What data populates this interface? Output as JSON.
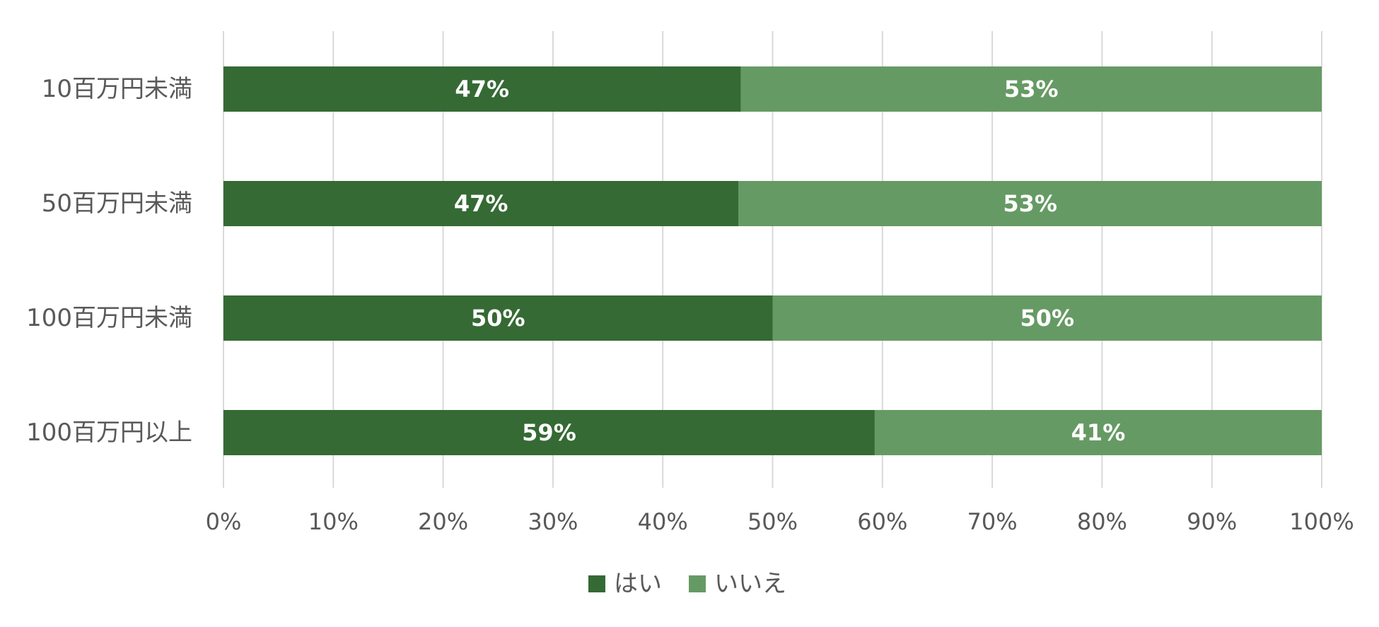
{
  "chart_data": {
    "type": "bar",
    "orientation": "horizontal",
    "stacked": true,
    "percent": true,
    "categories": [
      "10百万円未満",
      "50百万円未満",
      "100百万円未満",
      "100百万円以上"
    ],
    "series": [
      {
        "name": "はい",
        "color": "#356a34",
        "values": [
          47.1,
          46.9,
          50,
          59.3
        ],
        "labels": [
          "47%",
          "47%",
          "50%",
          "59%"
        ]
      },
      {
        "name": "いいえ",
        "color": "#669a64",
        "values": [
          52.9,
          53.1,
          50,
          40.7
        ],
        "labels": [
          "53%",
          "53%",
          "50%",
          "41%"
        ]
      }
    ],
    "xlim": [
      0,
      100
    ],
    "x_ticks": [
      "0%",
      "10%",
      "20%",
      "30%",
      "40%",
      "50%",
      "60%",
      "70%",
      "80%",
      "90%",
      "100%"
    ],
    "grid": true,
    "legend": "bottom",
    "colors": {
      "grid": "#d9d9d9",
      "text": "#595959",
      "data_label": "#ffffff"
    }
  }
}
